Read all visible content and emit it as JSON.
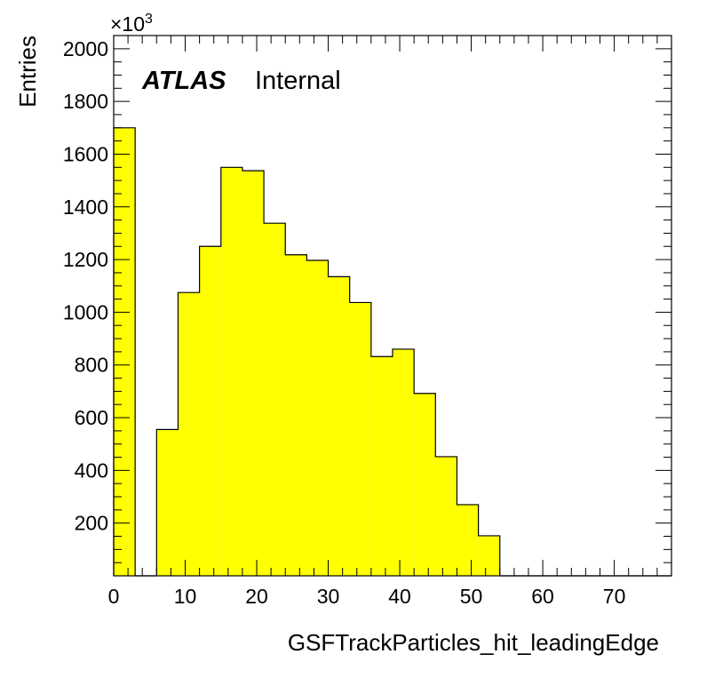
{
  "chart_data": {
    "type": "bar",
    "bin_edges": [
      0,
      3,
      6,
      9,
      12,
      15,
      18,
      21,
      24,
      27,
      30,
      33,
      36,
      39,
      42,
      45,
      48,
      51,
      54,
      57,
      60,
      63,
      66,
      69,
      72,
      75,
      78
    ],
    "values": [
      1700,
      0,
      555,
      1075,
      1250,
      1550,
      1537,
      1338,
      1218,
      1197,
      1135,
      1037,
      832,
      860,
      692,
      452,
      270,
      152,
      0,
      0,
      0,
      0,
      0,
      0,
      0,
      0
    ],
    "xlabel": "GSFTrackParticles_hit_leadingEdge",
    "ylabel": "Entries",
    "y_scale_label_prefix": "×10",
    "y_scale_label_exponent": "3",
    "xlim": [
      0,
      78
    ],
    "ylim": [
      0,
      2050
    ],
    "x_ticks": [
      0,
      10,
      20,
      30,
      40,
      50,
      60,
      70
    ],
    "y_ticks": [
      200,
      400,
      600,
      800,
      1000,
      1200,
      1400,
      1600,
      1800,
      2000
    ],
    "fill_color": "#ffff00",
    "line_color": "#000000",
    "grid": false,
    "annotation_bold": "ATLAS",
    "annotation_text": "Internal"
  }
}
